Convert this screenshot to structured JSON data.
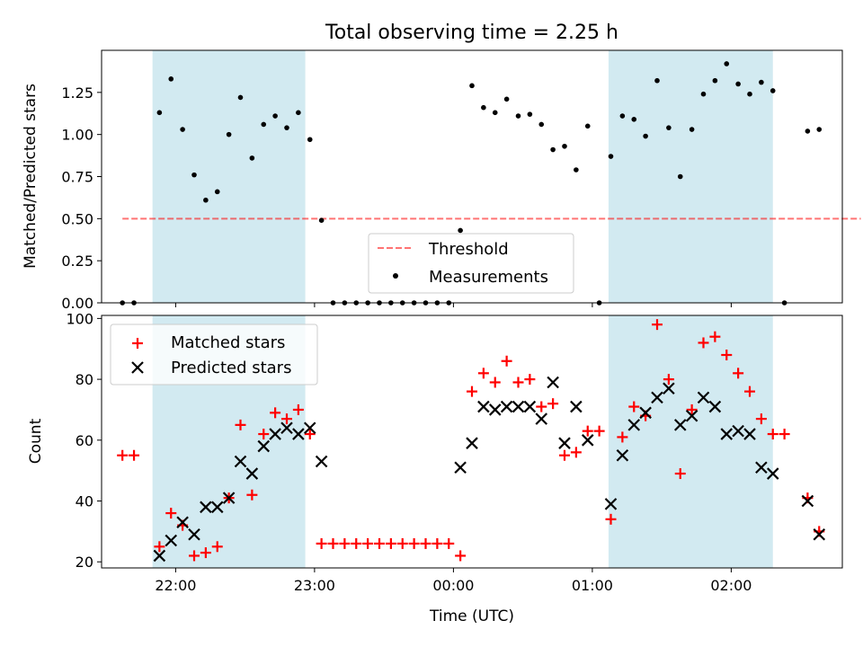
{
  "title": "Total observing time = 2.25 h",
  "colors": {
    "shade": "#add8e6",
    "threshold": "#ff0000",
    "matched": "#ff0000",
    "predicted": "#000000",
    "measurement": "#000000"
  },
  "chart_data": [
    {
      "type": "scatter",
      "panel": "top",
      "title": "Total observing time = 2.25 h",
      "ylabel": "Matched/Predicted stars",
      "xlabel": "",
      "ylim": [
        0,
        1.5
      ],
      "yticks": [
        "0.00",
        "0.25",
        "0.50",
        "0.75",
        "1.00",
        "1.25"
      ],
      "legend_position": "lower-center",
      "shaded_intervals": [
        [
          "21:50",
          "22:56"
        ],
        [
          "01:07",
          "02:18"
        ]
      ],
      "series": [
        {
          "name": "Threshold",
          "style": "dashed-line",
          "points": [
            [
              "21:37",
              0.5
            ],
            [
              "02:56",
              0.5
            ]
          ]
        },
        {
          "name": "Measurements",
          "style": "dots",
          "points": [
            [
              "21:37",
              0.0
            ],
            [
              "21:42",
              0.0
            ],
            [
              "21:53",
              1.13
            ],
            [
              "21:58",
              1.33
            ],
            [
              "22:03",
              1.03
            ],
            [
              "22:08",
              0.76
            ],
            [
              "22:13",
              0.61
            ],
            [
              "22:18",
              0.66
            ],
            [
              "22:23",
              1.0
            ],
            [
              "22:28",
              1.22
            ],
            [
              "22:33",
              0.86
            ],
            [
              "22:38",
              1.06
            ],
            [
              "22:43",
              1.11
            ],
            [
              "22:48",
              1.04
            ],
            [
              "22:53",
              1.13
            ],
            [
              "22:58",
              0.97
            ],
            [
              "23:03",
              0.49
            ],
            [
              "23:08",
              0.0
            ],
            [
              "23:13",
              0.0
            ],
            [
              "23:18",
              0.0
            ],
            [
              "23:23",
              0.0
            ],
            [
              "23:28",
              0.0
            ],
            [
              "23:33",
              0.0
            ],
            [
              "23:38",
              0.0
            ],
            [
              "23:43",
              0.0
            ],
            [
              "23:48",
              0.0
            ],
            [
              "23:53",
              0.0
            ],
            [
              "23:58",
              0.0
            ],
            [
              "00:03",
              0.43
            ],
            [
              "00:08",
              1.29
            ],
            [
              "00:13",
              1.16
            ],
            [
              "00:18",
              1.13
            ],
            [
              "00:23",
              1.21
            ],
            [
              "00:28",
              1.11
            ],
            [
              "00:33",
              1.12
            ],
            [
              "00:38",
              1.06
            ],
            [
              "00:43",
              0.91
            ],
            [
              "00:48",
              0.93
            ],
            [
              "00:53",
              0.79
            ],
            [
              "00:58",
              1.05
            ],
            [
              "01:03",
              0.0
            ],
            [
              "01:08",
              0.87
            ],
            [
              "01:13",
              1.11
            ],
            [
              "01:18",
              1.09
            ],
            [
              "01:23",
              0.99
            ],
            [
              "01:28",
              1.32
            ],
            [
              "01:33",
              1.04
            ],
            [
              "01:38",
              0.75
            ],
            [
              "01:43",
              1.03
            ],
            [
              "01:48",
              1.24
            ],
            [
              "01:53",
              1.32
            ],
            [
              "01:58",
              1.42
            ],
            [
              "02:03",
              1.3
            ],
            [
              "02:08",
              1.24
            ],
            [
              "02:13",
              1.31
            ],
            [
              "02:18",
              1.26
            ],
            [
              "02:23",
              0.0
            ],
            [
              "02:33",
              1.02
            ],
            [
              "02:38",
              1.03
            ]
          ]
        }
      ]
    },
    {
      "type": "scatter",
      "panel": "bottom",
      "xlabel": "Time (UTC)",
      "ylabel": "Count",
      "ylim": [
        18,
        101
      ],
      "yticks": [
        "20",
        "40",
        "60",
        "80",
        "100"
      ],
      "xticks": [
        "22:00",
        "23:00",
        "00:00",
        "01:00",
        "02:00"
      ],
      "x_range": [
        "21:28",
        "02:48"
      ],
      "legend_position": "upper-left",
      "shaded_intervals": [
        [
          "21:50",
          "22:56"
        ],
        [
          "01:07",
          "02:18"
        ]
      ],
      "series": [
        {
          "name": "Matched stars",
          "marker": "plus",
          "points": [
            [
              "21:37",
              55
            ],
            [
              "21:42",
              55
            ],
            [
              "21:53",
              25
            ],
            [
              "21:58",
              36
            ],
            [
              "22:03",
              32
            ],
            [
              "22:08",
              22
            ],
            [
              "22:13",
              23
            ],
            [
              "22:18",
              25
            ],
            [
              "22:23",
              41
            ],
            [
              "22:28",
              65
            ],
            [
              "22:33",
              42
            ],
            [
              "22:38",
              62
            ],
            [
              "22:43",
              69
            ],
            [
              "22:48",
              67
            ],
            [
              "22:53",
              70
            ],
            [
              "22:58",
              62
            ],
            [
              "23:03",
              26
            ],
            [
              "23:08",
              26
            ],
            [
              "23:13",
              26
            ],
            [
              "23:18",
              26
            ],
            [
              "23:23",
              26
            ],
            [
              "23:28",
              26
            ],
            [
              "23:33",
              26
            ],
            [
              "23:38",
              26
            ],
            [
              "23:43",
              26
            ],
            [
              "23:48",
              26
            ],
            [
              "23:53",
              26
            ],
            [
              "23:58",
              26
            ],
            [
              "00:03",
              22
            ],
            [
              "00:08",
              76
            ],
            [
              "00:13",
              82
            ],
            [
              "00:18",
              79
            ],
            [
              "00:23",
              86
            ],
            [
              "00:28",
              79
            ],
            [
              "00:33",
              80
            ],
            [
              "00:38",
              71
            ],
            [
              "00:43",
              72
            ],
            [
              "00:48",
              55
            ],
            [
              "00:53",
              56
            ],
            [
              "00:58",
              63
            ],
            [
              "01:03",
              63
            ],
            [
              "01:08",
              34
            ],
            [
              "01:13",
              61
            ],
            [
              "01:18",
              71
            ],
            [
              "01:23",
              68
            ],
            [
              "01:28",
              98
            ],
            [
              "01:33",
              80
            ],
            [
              "01:38",
              49
            ],
            [
              "01:43",
              70
            ],
            [
              "01:48",
              92
            ],
            [
              "01:53",
              94
            ],
            [
              "01:58",
              88
            ],
            [
              "02:03",
              82
            ],
            [
              "02:08",
              76
            ],
            [
              "02:13",
              67
            ],
            [
              "02:18",
              62
            ],
            [
              "02:23",
              62
            ],
            [
              "02:33",
              41
            ],
            [
              "02:38",
              30
            ]
          ]
        },
        {
          "name": "Predicted stars",
          "marker": "x",
          "points": [
            [
              "21:53",
              22
            ],
            [
              "21:58",
              27
            ],
            [
              "22:03",
              33
            ],
            [
              "22:08",
              29
            ],
            [
              "22:13",
              38
            ],
            [
              "22:18",
              38
            ],
            [
              "22:23",
              41
            ],
            [
              "22:28",
              53
            ],
            [
              "22:33",
              49
            ],
            [
              "22:38",
              58
            ],
            [
              "22:43",
              62
            ],
            [
              "22:48",
              64
            ],
            [
              "22:53",
              62
            ],
            [
              "22:58",
              64
            ],
            [
              "23:03",
              53
            ],
            [
              "00:03",
              51
            ],
            [
              "00:08",
              59
            ],
            [
              "00:13",
              71
            ],
            [
              "00:18",
              70
            ],
            [
              "00:23",
              71
            ],
            [
              "00:28",
              71
            ],
            [
              "00:33",
              71
            ],
            [
              "00:38",
              67
            ],
            [
              "00:43",
              79
            ],
            [
              "00:48",
              59
            ],
            [
              "00:53",
              71
            ],
            [
              "00:58",
              60
            ],
            [
              "01:08",
              39
            ],
            [
              "01:13",
              55
            ],
            [
              "01:18",
              65
            ],
            [
              "01:23",
              69
            ],
            [
              "01:28",
              74
            ],
            [
              "01:33",
              77
            ],
            [
              "01:38",
              65
            ],
            [
              "01:43",
              68
            ],
            [
              "01:48",
              74
            ],
            [
              "01:53",
              71
            ],
            [
              "01:58",
              62
            ],
            [
              "02:03",
              63
            ],
            [
              "02:08",
              62
            ],
            [
              "02:13",
              51
            ],
            [
              "02:18",
              49
            ],
            [
              "02:33",
              40
            ],
            [
              "02:38",
              29
            ]
          ]
        }
      ]
    }
  ]
}
